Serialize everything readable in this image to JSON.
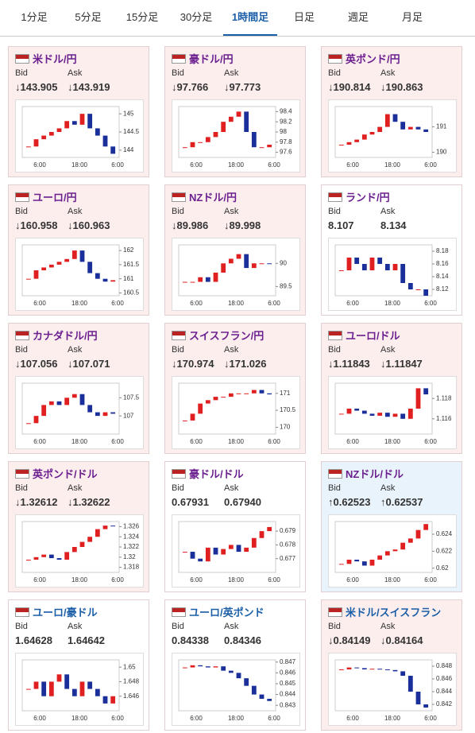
{
  "tabs": [
    "1分足",
    "5分足",
    "15分足",
    "30分足",
    "1時間足",
    "日足",
    "週足",
    "月足"
  ],
  "active_tab": 4,
  "labels": {
    "bid": "Bid",
    "ask": "Ask"
  },
  "x_labels": [
    "6:00",
    "18:00",
    "6:00"
  ],
  "panels": [
    {
      "title": "米ドル/円",
      "bid": "↓143.905",
      "ask": "↓143.919",
      "background": "#fdeeee",
      "title_color": "#6b1f8f",
      "ylim": [
        143.8,
        145.2
      ],
      "yticks": [
        144,
        144.5,
        145
      ],
      "closes": [
        144.1,
        144.3,
        144.4,
        144.5,
        144.6,
        144.8,
        144.7,
        145.0,
        144.6,
        144.4,
        144.1,
        143.9
      ]
    },
    {
      "title": "豪ドル/円",
      "bid": "↓97.766",
      "ask": "↓97.773",
      "background": "#fdeeee",
      "title_color": "#6b1f8f",
      "ylim": [
        97.5,
        98.5
      ],
      "yticks": [
        97.6,
        97.8,
        98,
        98.2,
        98.4
      ],
      "closes": [
        97.7,
        97.8,
        97.8,
        97.9,
        98.0,
        98.2,
        98.3,
        98.4,
        98.0,
        97.7,
        97.7,
        97.75
      ]
    },
    {
      "title": "英ポンド/円",
      "bid": "↓190.814",
      "ask": "↓190.863",
      "background": "#fdeeee",
      "title_color": "#6b1f8f",
      "ylim": [
        189.8,
        191.8
      ],
      "yticks": [
        190,
        191
      ],
      "closes": [
        190.3,
        190.4,
        190.5,
        190.7,
        190.8,
        191.0,
        191.5,
        191.2,
        190.9,
        191.0,
        190.9,
        190.8
      ]
    },
    {
      "title": "ユーロ/円",
      "bid": "↓160.958",
      "ask": "↓160.963",
      "background": "#fdeeee",
      "title_color": "#6b1f8f",
      "ylim": [
        160.4,
        162.2
      ],
      "yticks": [
        160.5,
        161,
        161.5,
        162
      ],
      "closes": [
        161.0,
        161.3,
        161.4,
        161.5,
        161.6,
        161.7,
        162.0,
        161.6,
        161.2,
        161.0,
        160.9,
        160.95
      ]
    },
    {
      "title": "NZドル/円",
      "bid": "↓89.986",
      "ask": "↓89.998",
      "background": "#fdeeee",
      "title_color": "#6b1f8f",
      "ylim": [
        89.3,
        90.4
      ],
      "yticks": [
        89.5,
        90
      ],
      "closes": [
        89.6,
        89.6,
        89.7,
        89.6,
        89.8,
        90.0,
        90.1,
        90.2,
        89.9,
        90.0,
        90.0,
        89.99
      ]
    },
    {
      "title": "ランド/円",
      "bid": "8.107",
      "ask": "8.134",
      "background": "#ffffff",
      "title_color": "#6b1f8f",
      "ylim": [
        8.11,
        8.19
      ],
      "yticks": [
        8.12,
        8.14,
        8.16,
        8.18
      ],
      "closes": [
        8.15,
        8.17,
        8.16,
        8.15,
        8.17,
        8.16,
        8.15,
        8.16,
        8.13,
        8.12,
        8.12,
        8.11
      ]
    },
    {
      "title": "カナダドル/円",
      "bid": "↓107.056",
      "ask": "↓107.071",
      "background": "#fdeeee",
      "title_color": "#6b1f8f",
      "ylim": [
        106.5,
        107.9
      ],
      "yticks": [
        107,
        107.5
      ],
      "closes": [
        106.8,
        107.0,
        107.3,
        107.4,
        107.3,
        107.5,
        107.6,
        107.3,
        107.1,
        107.0,
        107.1,
        107.06
      ]
    },
    {
      "title": "スイスフラン/円",
      "bid": "↓170.974",
      "ask": "↓171.026",
      "background": "#fdeeee",
      "title_color": "#6b1f8f",
      "ylim": [
        169.8,
        171.3
      ],
      "yticks": [
        170,
        170.5,
        171
      ],
      "closes": [
        170.2,
        170.4,
        170.7,
        170.8,
        170.9,
        170.9,
        171.0,
        171.0,
        171.0,
        171.1,
        171.0,
        170.97
      ]
    },
    {
      "title": "ユーロ/ドル",
      "bid": "↓1.11843",
      "ask": "↓1.11847",
      "background": "#fdeeee",
      "title_color": "#6b1f8f",
      "ylim": [
        1.1145,
        1.1195
      ],
      "yticks": [
        1.116,
        1.118
      ],
      "closes": [
        1.1165,
        1.117,
        1.1168,
        1.1165,
        1.1163,
        1.1166,
        1.1162,
        1.1165,
        1.116,
        1.117,
        1.119,
        1.1184
      ]
    },
    {
      "title": "英ポンド/ドル",
      "bid": "↓1.32612",
      "ask": "↓1.32622",
      "background": "#fdeeee",
      "title_color": "#6b1f8f",
      "ylim": [
        1.317,
        1.327
      ],
      "yticks": [
        1.318,
        1.32,
        1.322,
        1.324,
        1.326
      ],
      "closes": [
        1.3195,
        1.32,
        1.3205,
        1.3198,
        1.3195,
        1.321,
        1.322,
        1.323,
        1.324,
        1.3255,
        1.3262,
        1.3261
      ]
    },
    {
      "title": "豪ドル/ドル",
      "bid": "0.67931",
      "ask": "0.67940",
      "background": "#ffffff",
      "title_color": "#6b1f8f",
      "ylim": [
        0.676,
        0.6797
      ],
      "yticks": [
        0.677,
        0.678,
        0.679
      ],
      "closes": [
        0.6775,
        0.677,
        0.6768,
        0.6778,
        0.6773,
        0.6777,
        0.678,
        0.6775,
        0.6778,
        0.6785,
        0.679,
        0.6793
      ]
    },
    {
      "title": "NZドル/ドル",
      "bid": "↑0.62523",
      "ask": "↑0.62537",
      "background": "#e8f3fb",
      "title_color": "#6b1f8f",
      "ylim": [
        0.6195,
        0.6255
      ],
      "yticks": [
        0.62,
        0.622,
        0.624
      ],
      "closes": [
        0.6205,
        0.621,
        0.6208,
        0.6203,
        0.621,
        0.6215,
        0.622,
        0.6222,
        0.623,
        0.6235,
        0.6245,
        0.6252
      ]
    },
    {
      "title": "ユーロ/豪ドル",
      "bid": "1.64628",
      "ask": "1.64642",
      "background": "#ffffff",
      "title_color": "#1a5ea8",
      "ylim": [
        1.644,
        1.651
      ],
      "yticks": [
        1.646,
        1.648,
        1.65
      ],
      "closes": [
        1.647,
        1.648,
        1.646,
        1.648,
        1.649,
        1.647,
        1.646,
        1.648,
        1.647,
        1.646,
        1.645,
        1.646
      ]
    },
    {
      "title": "ユーロ/英ポンド",
      "bid": "0.84338",
      "ask": "0.84346",
      "background": "#ffffff",
      "title_color": "#1a5ea8",
      "ylim": [
        0.8425,
        0.8472
      ],
      "yticks": [
        0.843,
        0.844,
        0.845,
        0.846,
        0.847
      ],
      "closes": [
        0.8465,
        0.8467,
        0.8466,
        0.8465,
        0.8466,
        0.8462,
        0.846,
        0.8455,
        0.8448,
        0.844,
        0.8436,
        0.8434
      ]
    },
    {
      "title": "米ドル/スイスフラン",
      "bid": "↓0.84149",
      "ask": "↓0.84164",
      "background": "#fdeeee",
      "title_color": "#1a5ea8",
      "ylim": [
        0.841,
        0.849
      ],
      "yticks": [
        0.842,
        0.844,
        0.846,
        0.848
      ],
      "closes": [
        0.8475,
        0.8478,
        0.8477,
        0.8475,
        0.8476,
        0.8475,
        0.8474,
        0.8472,
        0.8465,
        0.844,
        0.842,
        0.8415
      ]
    }
  ]
}
